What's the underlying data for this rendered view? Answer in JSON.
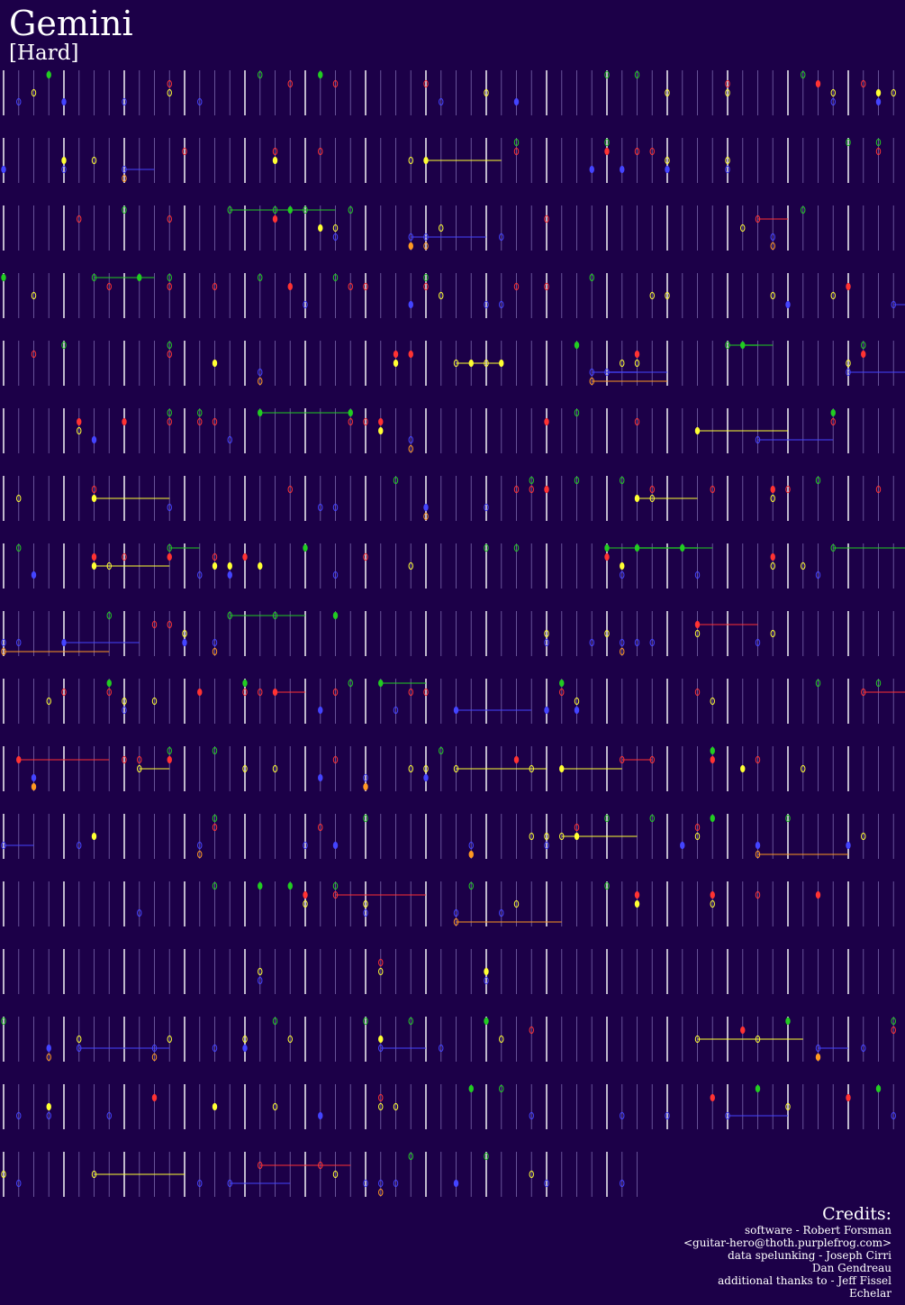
{
  "header": {
    "title": "Gemini",
    "difficulty": "[Hard]"
  },
  "credits": {
    "heading": "Credits:",
    "lines": [
      "software - Robert Forsman",
      "<guitar-hero@thoth.purplefrog.com>",
      "data spelunking - Joseph Cirri",
      "Dan Gendreau",
      "additional thanks to - Jeff Fissel",
      "Echelar"
    ]
  }
}
